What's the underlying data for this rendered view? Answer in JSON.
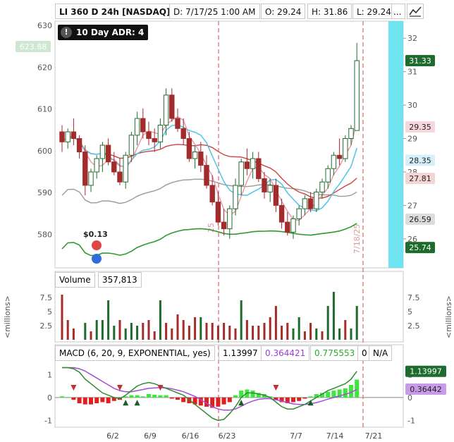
{
  "header": {
    "symbol_title": "LI 360 D 24h [NASDAQ]",
    "date": "D: 7/17/25 1:00 AM",
    "open": "O: 29.24",
    "high": "H: 31.86",
    "low": "L: 29.24",
    "more": "...",
    "icons": [
      "chart-style-icon"
    ]
  },
  "study_label": "10 Day ADR: 4",
  "overlay": {
    "dividend_label": "$0.13",
    "vertical_date_label_left": "25",
    "vertical_date_label_right": "7/18/25",
    "icons": [
      "dividend-icon",
      "earnings-bulb-icon",
      "alert-icon"
    ]
  },
  "volume_legend": {
    "title": "Volume",
    "value": "357,813"
  },
  "macd_legend": {
    "title": "MACD (6, 20, 9, EXPONENTIAL, yes)",
    "v1": "1.13997",
    "v2": "0.364421",
    "v3": "0.775553",
    "v4": "0",
    "v5": "N/A"
  },
  "side_label": "<millions>",
  "colors": {
    "up": "#1e6b2e",
    "down": "#a32b2b",
    "ma_cyan": "#4fc3e8",
    "ma_pink": "#f08aa0",
    "ma_red": "#d24040",
    "ma_gray": "#9a9a9a",
    "ma_green": "#2e9a2e",
    "macd_pos": "#3ce63c",
    "macd_neg": "#e02020",
    "highlight_band": "#6fe3f0"
  },
  "chart_data": [
    {
      "type": "candlestick",
      "left_axis": {
        "ticks": [
          580,
          590,
          600,
          610,
          620,
          630
        ],
        "current_label": "623.88",
        "range": [
          572,
          631
        ]
      },
      "right_axis": {
        "ticks": [
          26,
          27,
          28,
          29,
          30,
          31,
          32
        ],
        "range": [
          25.3,
          32.3
        ]
      },
      "price_tags": [
        {
          "value": "31.33",
          "color": "#1e6b2e"
        },
        {
          "value": "29.35",
          "color": "#f6d7de"
        },
        {
          "value": "28.35",
          "color": "#d6f0fa"
        },
        {
          "value": "27.81",
          "color": "#f4d5d5"
        },
        {
          "value": "26.59",
          "color": "#dcdcdc"
        },
        {
          "value": "25.74",
          "color": "#1e6b2e"
        }
      ],
      "x_ticks": [
        "6/2",
        "6/9",
        "6/16",
        "6/23",
        "7/7",
        "7/14",
        "7/21"
      ],
      "candles": [
        [
          29.2,
          29.4,
          28.6,
          28.9
        ],
        [
          28.9,
          29.3,
          28.7,
          29.2
        ],
        [
          29.2,
          29.6,
          28.8,
          29.0
        ],
        [
          29.0,
          29.1,
          28.4,
          28.6
        ],
        [
          28.6,
          28.8,
          27.3,
          27.6
        ],
        [
          27.6,
          28.1,
          27.4,
          28.0
        ],
        [
          28.0,
          28.5,
          27.8,
          28.4
        ],
        [
          28.4,
          28.9,
          28.0,
          28.8
        ],
        [
          28.8,
          29.0,
          28.2,
          28.3
        ],
        [
          28.3,
          28.6,
          27.9,
          28.0
        ],
        [
          28.0,
          28.4,
          27.6,
          27.7
        ],
        [
          27.7,
          28.6,
          27.5,
          28.5
        ],
        [
          28.5,
          29.2,
          28.3,
          29.1
        ],
        [
          29.1,
          29.8,
          28.8,
          29.6
        ],
        [
          29.6,
          29.9,
          29.0,
          29.2
        ],
        [
          29.2,
          29.5,
          28.8,
          29.0
        ],
        [
          29.0,
          29.3,
          28.6,
          28.9
        ],
        [
          28.9,
          29.6,
          28.7,
          29.4
        ],
        [
          29.4,
          30.5,
          29.1,
          30.3
        ],
        [
          30.3,
          30.5,
          29.5,
          29.6
        ],
        [
          29.6,
          29.9,
          29.2,
          29.3
        ],
        [
          29.3,
          29.6,
          28.8,
          29.0
        ],
        [
          29.0,
          29.2,
          28.3,
          28.4
        ],
        [
          28.4,
          28.8,
          28.1,
          28.6
        ],
        [
          28.6,
          28.9,
          28.0,
          28.2
        ],
        [
          28.2,
          28.5,
          27.5,
          27.6
        ],
        [
          27.6,
          27.9,
          27.0,
          27.1
        ],
        [
          27.1,
          27.4,
          26.4,
          26.5
        ],
        [
          26.5,
          26.9,
          26.1,
          26.3
        ],
        [
          26.3,
          27.0,
          26.0,
          26.9
        ],
        [
          26.9,
          27.8,
          26.7,
          27.6
        ],
        [
          27.6,
          28.4,
          27.3,
          28.3
        ],
        [
          28.3,
          28.7,
          27.9,
          28.1
        ],
        [
          28.1,
          28.6,
          27.8,
          28.4
        ],
        [
          28.4,
          28.6,
          27.7,
          27.8
        ],
        [
          27.8,
          28.0,
          27.2,
          27.4
        ],
        [
          27.4,
          27.8,
          27.1,
          27.6
        ],
        [
          27.6,
          27.8,
          26.8,
          27.0
        ],
        [
          27.0,
          27.2,
          26.3,
          26.5
        ],
        [
          26.5,
          26.8,
          26.1,
          26.2
        ],
        [
          26.2,
          26.7,
          26.0,
          26.6
        ],
        [
          26.6,
          27.0,
          26.4,
          26.9
        ],
        [
          26.9,
          27.3,
          26.7,
          27.2
        ],
        [
          27.2,
          27.4,
          26.8,
          26.9
        ],
        [
          26.9,
          27.5,
          26.8,
          27.4
        ],
        [
          27.4,
          27.8,
          27.2,
          27.7
        ],
        [
          27.7,
          28.2,
          27.5,
          28.1
        ],
        [
          28.1,
          28.6,
          27.9,
          28.5
        ],
        [
          28.5,
          29.0,
          28.2,
          28.4
        ],
        [
          28.4,
          29.1,
          28.3,
          29.0
        ],
        [
          29.0,
          29.4,
          28.8,
          29.3
        ],
        [
          29.24,
          31.86,
          29.24,
          31.33
        ]
      ],
      "moving_averages": [
        "cyan",
        "pink",
        "red",
        "gray",
        "green"
      ]
    },
    {
      "type": "bar",
      "title": "Volume",
      "y_ticks": [
        2.5,
        5,
        7.5
      ],
      "unit": "millions",
      "values": [
        8,
        3.5,
        2,
        0,
        3,
        1.5,
        3.5,
        3.5,
        7,
        2.5,
        3.5,
        2,
        3,
        2.5,
        3,
        3.5,
        1.5,
        7,
        3,
        2,
        4.5,
        3.5,
        2.5,
        4,
        4,
        3,
        3,
        2.5,
        3,
        2.5,
        2,
        7,
        3.5,
        2.5,
        2.5,
        3,
        4,
        6,
        2.5,
        3,
        2,
        4,
        1.5,
        3,
        2,
        1.5,
        6,
        8.5,
        2,
        3.5,
        2,
        6
      ],
      "colors_up": [
        false,
        false,
        false,
        false,
        true,
        false,
        true,
        true,
        true,
        true,
        false,
        true,
        true,
        true,
        false,
        false,
        false,
        true,
        false,
        false,
        false,
        false,
        false,
        false,
        true,
        false,
        false,
        false,
        false,
        false,
        false,
        true,
        false,
        false,
        false,
        false,
        false,
        false,
        false,
        false,
        true,
        true,
        false,
        false,
        true,
        false,
        true,
        true,
        true,
        false,
        true,
        true
      ]
    },
    {
      "type": "histogram+lines",
      "title": "MACD (6, 20, 9, EXPONENTIAL, yes)",
      "y_ticks": [
        -1,
        0,
        1
      ],
      "tags": [
        "1.13997",
        "0.36442"
      ],
      "histogram": [
        0.05,
        0.02,
        -0.1,
        -0.25,
        -0.3,
        -0.3,
        -0.25,
        -0.2,
        -0.25,
        -0.15,
        -0.1,
        0.05,
        0.1,
        0.1,
        0.05,
        0.15,
        0.12,
        0.1,
        0.1,
        -0.05,
        -0.1,
        -0.2,
        -0.25,
        -0.3,
        -0.35,
        -0.4,
        -0.45,
        -0.4,
        -0.3,
        -0.2,
        0.1,
        0.3,
        0.35,
        0.3,
        0.2,
        0.15,
        0.05,
        -0.1,
        -0.2,
        -0.25,
        -0.2,
        -0.15,
        -0.05,
        0.05,
        0.15,
        0.2,
        0.25,
        0.3,
        0.35,
        0.4,
        0.55,
        0.78
      ],
      "macd": [
        1.3,
        1.3,
        1.25,
        1.1,
        0.8,
        0.6,
        0.4,
        0.2,
        0.1,
        0.0,
        -0.05,
        0.1,
        0.3,
        0.5,
        0.6,
        0.65,
        0.6,
        0.5,
        0.4,
        0.3,
        0.2,
        0.1,
        -0.1,
        -0.3,
        -0.5,
        -0.7,
        -0.9,
        -1.0,
        -0.95,
        -0.7,
        -0.4,
        0.0,
        0.2,
        0.2,
        0.15,
        0.1,
        0.0,
        -0.2,
        -0.4,
        -0.5,
        -0.5,
        -0.4,
        -0.3,
        -0.15,
        0.0,
        0.15,
        0.3,
        0.4,
        0.5,
        0.6,
        0.8,
        1.14
      ],
      "signal": [
        1.3,
        1.3,
        1.3,
        1.25,
        1.15,
        1.0,
        0.85,
        0.7,
        0.55,
        0.4,
        0.3,
        0.25,
        0.25,
        0.3,
        0.35,
        0.4,
        0.42,
        0.43,
        0.42,
        0.38,
        0.32,
        0.25,
        0.15,
        0.05,
        -0.1,
        -0.25,
        -0.4,
        -0.5,
        -0.55,
        -0.55,
        -0.5,
        -0.38,
        -0.25,
        -0.15,
        -0.08,
        -0.05,
        -0.05,
        -0.1,
        -0.15,
        -0.22,
        -0.28,
        -0.3,
        -0.3,
        -0.27,
        -0.22,
        -0.15,
        -0.07,
        0.0,
        0.07,
        0.14,
        0.22,
        0.36
      ],
      "sell_arrows_at": [
        2,
        10,
        17,
        37
      ],
      "buy_arrows_at": [
        11,
        13,
        31,
        43
      ]
    }
  ]
}
